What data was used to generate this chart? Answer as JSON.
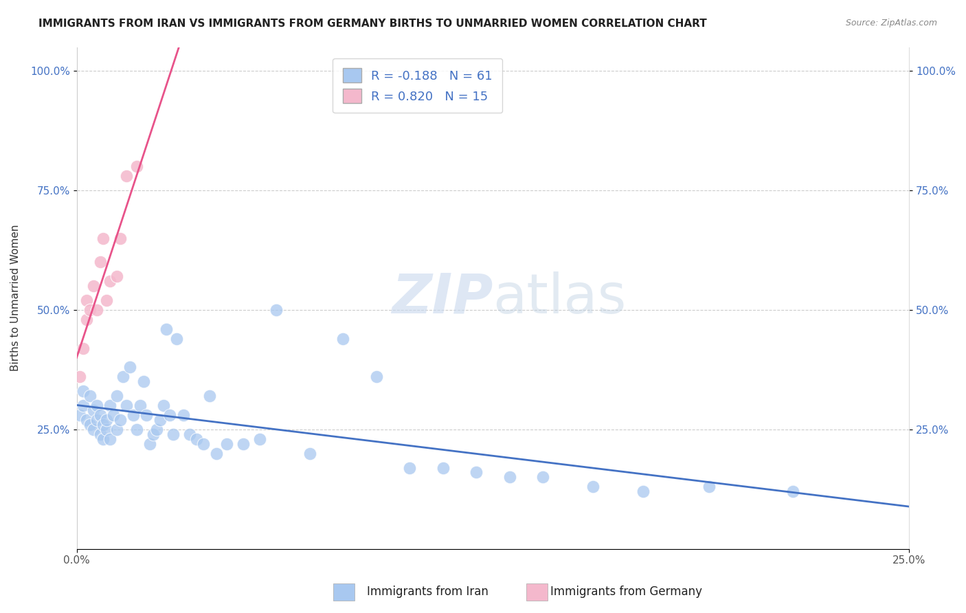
{
  "title": "IMMIGRANTS FROM IRAN VS IMMIGRANTS FROM GERMANY BIRTHS TO UNMARRIED WOMEN CORRELATION CHART",
  "source": "Source: ZipAtlas.com",
  "ylabel": "Births to Unmarried Women",
  "xaxis_label_iran": "Immigrants from Iran",
  "xaxis_label_germany": "Immigrants from Germany",
  "xlim": [
    0.0,
    0.25
  ],
  "ylim": [
    0.0,
    1.05
  ],
  "iran_R": -0.188,
  "iran_N": 61,
  "germany_R": 0.82,
  "germany_N": 15,
  "iran_color": "#a8c8f0",
  "germany_color": "#f4b8cc",
  "iran_line_color": "#4472c4",
  "germany_line_color": "#e8538a",
  "legend_R_color": "#4472c4",
  "iran_points_x": [
    0.001,
    0.002,
    0.002,
    0.003,
    0.004,
    0.004,
    0.005,
    0.005,
    0.006,
    0.006,
    0.007,
    0.007,
    0.008,
    0.008,
    0.009,
    0.009,
    0.01,
    0.01,
    0.011,
    0.012,
    0.012,
    0.013,
    0.014,
    0.015,
    0.016,
    0.017,
    0.018,
    0.019,
    0.02,
    0.021,
    0.022,
    0.023,
    0.024,
    0.025,
    0.026,
    0.027,
    0.028,
    0.029,
    0.03,
    0.032,
    0.034,
    0.036,
    0.038,
    0.04,
    0.042,
    0.045,
    0.05,
    0.055,
    0.06,
    0.07,
    0.08,
    0.09,
    0.1,
    0.11,
    0.12,
    0.13,
    0.14,
    0.155,
    0.17,
    0.19,
    0.215
  ],
  "iran_points_y": [
    0.28,
    0.3,
    0.33,
    0.27,
    0.32,
    0.26,
    0.29,
    0.25,
    0.27,
    0.3,
    0.24,
    0.28,
    0.26,
    0.23,
    0.25,
    0.27,
    0.3,
    0.23,
    0.28,
    0.25,
    0.32,
    0.27,
    0.36,
    0.3,
    0.38,
    0.28,
    0.25,
    0.3,
    0.35,
    0.28,
    0.22,
    0.24,
    0.25,
    0.27,
    0.3,
    0.46,
    0.28,
    0.24,
    0.44,
    0.28,
    0.24,
    0.23,
    0.22,
    0.32,
    0.2,
    0.22,
    0.22,
    0.23,
    0.5,
    0.2,
    0.44,
    0.36,
    0.17,
    0.17,
    0.16,
    0.15,
    0.15,
    0.13,
    0.12,
    0.13,
    0.12
  ],
  "germany_points_x": [
    0.001,
    0.002,
    0.003,
    0.003,
    0.004,
    0.005,
    0.006,
    0.007,
    0.008,
    0.009,
    0.01,
    0.012,
    0.013,
    0.015,
    0.018
  ],
  "germany_points_y": [
    0.36,
    0.42,
    0.48,
    0.52,
    0.5,
    0.55,
    0.5,
    0.6,
    0.65,
    0.52,
    0.56,
    0.57,
    0.65,
    0.78,
    0.8
  ]
}
